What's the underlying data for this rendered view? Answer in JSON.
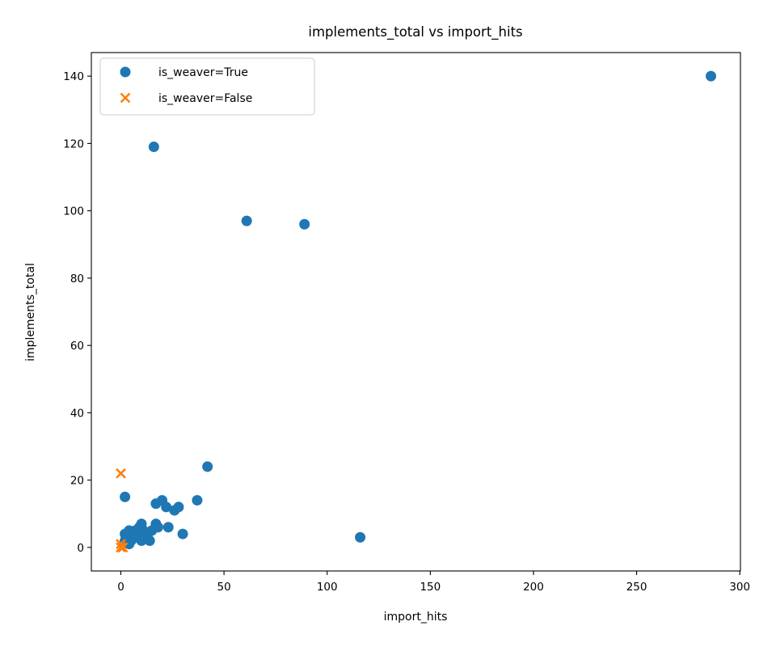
{
  "chart_data": {
    "type": "scatter",
    "title": "implements_total vs import_hits",
    "xlabel": "import_hits",
    "ylabel": "implements_total",
    "xlim": [
      -14.3,
      300.3
    ],
    "ylim": [
      -7,
      147
    ],
    "xticks": [
      0,
      50,
      100,
      150,
      200,
      250,
      300
    ],
    "yticks": [
      0,
      20,
      40,
      60,
      80,
      100,
      120,
      140
    ],
    "grid": false,
    "legend": {
      "placement": "top-left",
      "entries": [
        "is_weaver=True",
        "is_weaver=False"
      ]
    },
    "series": [
      {
        "name": "is_weaver=True",
        "color": "#1f77b4",
        "marker": "circle",
        "points": [
          [
            286,
            140
          ],
          [
            16,
            119
          ],
          [
            61,
            97
          ],
          [
            89,
            96
          ],
          [
            116,
            3
          ],
          [
            42,
            24
          ],
          [
            37,
            14
          ],
          [
            2,
            15
          ],
          [
            20,
            14
          ],
          [
            17,
            13
          ],
          [
            22,
            12
          ],
          [
            28,
            12
          ],
          [
            26,
            11
          ],
          [
            10,
            7
          ],
          [
            17,
            7
          ],
          [
            23,
            6
          ],
          [
            30,
            4
          ],
          [
            14,
            2
          ],
          [
            4,
            5
          ],
          [
            7,
            5
          ],
          [
            9,
            6
          ],
          [
            11,
            5
          ],
          [
            13,
            4
          ],
          [
            2,
            4
          ],
          [
            3,
            3
          ],
          [
            5,
            2
          ],
          [
            8,
            3
          ],
          [
            10,
            2
          ],
          [
            12,
            3
          ],
          [
            6,
            4
          ],
          [
            2,
            2
          ],
          [
            4,
            1
          ],
          [
            15,
            5
          ],
          [
            18,
            6
          ]
        ]
      },
      {
        "name": "is_weaver=False",
        "color": "#ff7f0e",
        "marker": "x",
        "points": [
          [
            0,
            22
          ],
          [
            0,
            0
          ],
          [
            1,
            0
          ],
          [
            0,
            1
          ]
        ]
      }
    ]
  }
}
